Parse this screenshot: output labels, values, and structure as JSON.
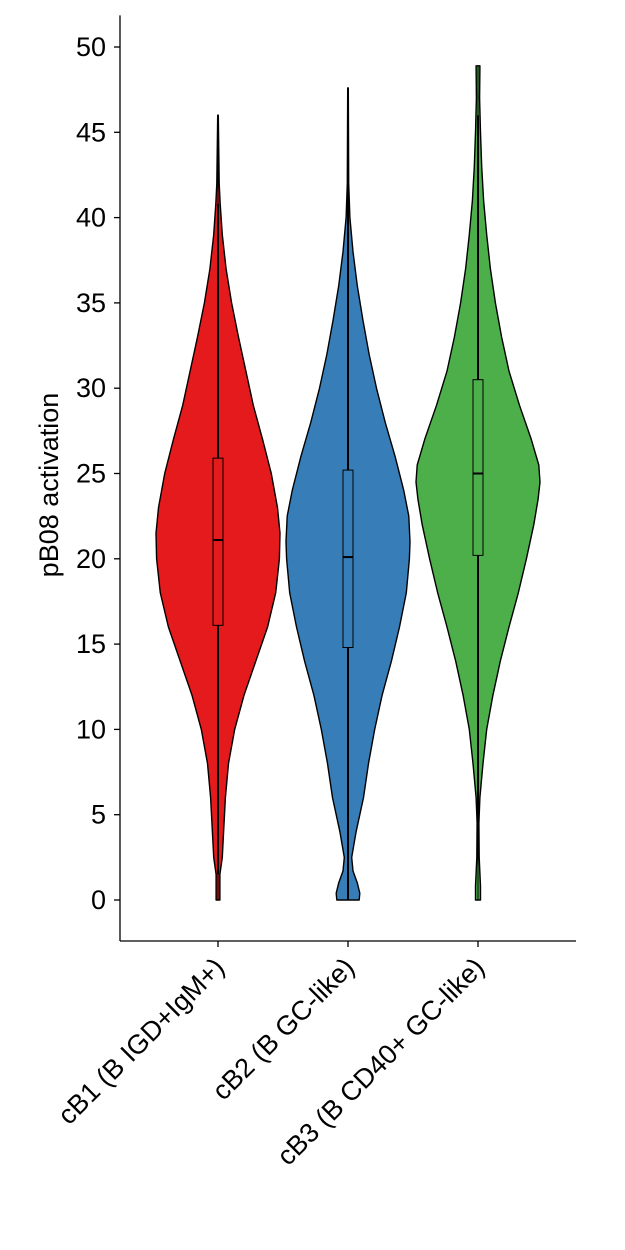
{
  "chart_data": {
    "type": "violin",
    "ylabel": "pB08 activation",
    "ylim": [
      -2.5,
      51.5
    ],
    "yticks": [
      0,
      5,
      10,
      15,
      20,
      25,
      30,
      35,
      40,
      45,
      50
    ],
    "grid": false,
    "legend": "none",
    "categories": [
      {
        "label": "cB1 (B IGD+IgM+)",
        "color": "#e41a1c",
        "min": 0,
        "max": 46,
        "q1": 16.1,
        "median": 21.1,
        "q3": 25.9,
        "whisker_low": 1.5,
        "whisker_high": 40.8,
        "density": [
          [
            0,
            0.03
          ],
          [
            1.5,
            0.03
          ],
          [
            2.5,
            0.07
          ],
          [
            4,
            0.09
          ],
          [
            6,
            0.12
          ],
          [
            8,
            0.17
          ],
          [
            10,
            0.27
          ],
          [
            12,
            0.42
          ],
          [
            14,
            0.61
          ],
          [
            16,
            0.8
          ],
          [
            18,
            0.93
          ],
          [
            20,
            0.99
          ],
          [
            21.5,
            1.0
          ],
          [
            23,
            0.96
          ],
          [
            25,
            0.86
          ],
          [
            27,
            0.72
          ],
          [
            29,
            0.57
          ],
          [
            31,
            0.45
          ],
          [
            33,
            0.33
          ],
          [
            35,
            0.22
          ],
          [
            37,
            0.13
          ],
          [
            39,
            0.07
          ],
          [
            40.8,
            0.035
          ],
          [
            42,
            0.02
          ],
          [
            46,
            0.005
          ]
        ]
      },
      {
        "label": "cB2 (B GC-like)",
        "color": "#377eb8",
        "min": 0,
        "max": 47.6,
        "q1": 14.8,
        "median": 20.1,
        "q3": 25.2,
        "whisker_low": 0,
        "whisker_high": 42.5,
        "density": [
          [
            0,
            0.18
          ],
          [
            0.4,
            0.19
          ],
          [
            1,
            0.15
          ],
          [
            1.7,
            0.08
          ],
          [
            2.5,
            0.06
          ],
          [
            4,
            0.13
          ],
          [
            6,
            0.25
          ],
          [
            8,
            0.33
          ],
          [
            10,
            0.43
          ],
          [
            12,
            0.55
          ],
          [
            14,
            0.7
          ],
          [
            16,
            0.83
          ],
          [
            18,
            0.94
          ],
          [
            20,
            0.99
          ],
          [
            21,
            1.0
          ],
          [
            22.5,
            0.98
          ],
          [
            24,
            0.9
          ],
          [
            26,
            0.76
          ],
          [
            28,
            0.6
          ],
          [
            30,
            0.46
          ],
          [
            32,
            0.34
          ],
          [
            34,
            0.24
          ],
          [
            36,
            0.15
          ],
          [
            38,
            0.08
          ],
          [
            40,
            0.03
          ],
          [
            42,
            0.012
          ],
          [
            47.6,
            0.005
          ]
        ]
      },
      {
        "label": "cB3 (B CD40+ GC-like)",
        "color": "#4daf4a",
        "min": 0,
        "max": 48.9,
        "q1": 20.2,
        "median": 25.0,
        "q3": 30.5,
        "whisker_low": 4.6,
        "whisker_high": 46.0,
        "density": [
          [
            0,
            0.04
          ],
          [
            0.8,
            0.04
          ],
          [
            2.5,
            0.02
          ],
          [
            4.5,
            0.015
          ],
          [
            6,
            0.03
          ],
          [
            8,
            0.08
          ],
          [
            10,
            0.14
          ],
          [
            12,
            0.24
          ],
          [
            14,
            0.36
          ],
          [
            16,
            0.5
          ],
          [
            18,
            0.65
          ],
          [
            20,
            0.78
          ],
          [
            22,
            0.9
          ],
          [
            23.5,
            0.97
          ],
          [
            24.5,
            1.0
          ],
          [
            25.5,
            0.98
          ],
          [
            27,
            0.86
          ],
          [
            29,
            0.67
          ],
          [
            31,
            0.5
          ],
          [
            33,
            0.38
          ],
          [
            35,
            0.28
          ],
          [
            37,
            0.2
          ],
          [
            39,
            0.14
          ],
          [
            41,
            0.09
          ],
          [
            43,
            0.06
          ],
          [
            45,
            0.04
          ],
          [
            47,
            0.025
          ],
          [
            48.7,
            0.03
          ],
          [
            48.9,
            0.03
          ]
        ]
      }
    ]
  }
}
